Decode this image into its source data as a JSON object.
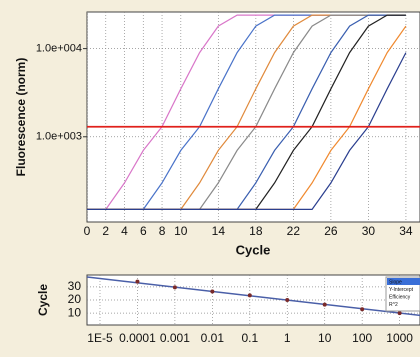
{
  "chart_data": [
    {
      "type": "line",
      "ylabel": "Fluorescence (norm)",
      "xlabel": "Cycle",
      "log_y": true,
      "x": [
        0,
        2,
        4,
        6,
        8,
        10,
        12,
        14,
        16,
        18,
        20,
        22,
        24,
        26,
        28,
        30,
        32,
        34
      ],
      "xlim": [
        0,
        35.5
      ],
      "xticks": [
        0,
        2,
        4,
        6,
        8,
        10,
        14,
        18,
        22,
        26,
        30,
        34
      ],
      "ylim": [
        108,
        26000
      ],
      "yticks": [
        {
          "value": 10000,
          "label": "1.0e+004"
        },
        {
          "value": 1000,
          "label": "1.0e+003"
        }
      ],
      "grid": true,
      "threshold": {
        "value": 1300,
        "color": "#e0201b"
      },
      "series": [
        {
          "color": "#d977c9",
          "values": [
            150,
            150,
            300,
            700,
            1300,
            3500,
            9000,
            18000,
            24000,
            24000,
            24000,
            24000,
            24000,
            24000,
            24000,
            24000,
            24000,
            24000
          ]
        },
        {
          "color": "#4a73c9",
          "values": [
            150,
            150,
            150,
            150,
            300,
            700,
            1300,
            3500,
            9000,
            18000,
            24000,
            24000,
            24000,
            24000,
            24000,
            24000,
            24000,
            24000
          ]
        },
        {
          "color": "#e08a3c",
          "values": [
            150,
            150,
            150,
            150,
            150,
            150,
            300,
            700,
            1300,
            3500,
            9000,
            18000,
            24000,
            24000,
            24000,
            24000,
            24000,
            24000
          ]
        },
        {
          "color": "#8a8a8a",
          "values": [
            150,
            150,
            150,
            150,
            150,
            150,
            150,
            300,
            700,
            1300,
            3500,
            9000,
            18000,
            24000,
            24000,
            24000,
            24000,
            24000
          ]
        },
        {
          "color": "#3a5fb0",
          "values": [
            150,
            150,
            150,
            150,
            150,
            150,
            150,
            150,
            150,
            300,
            700,
            1300,
            3500,
            9000,
            18000,
            24000,
            24000,
            24000
          ]
        },
        {
          "color": "#222222",
          "values": [
            150,
            150,
            150,
            150,
            150,
            150,
            150,
            150,
            150,
            150,
            300,
            700,
            1300,
            3500,
            9000,
            18000,
            24000,
            24000
          ]
        },
        {
          "color": "#f08a30",
          "values": [
            150,
            150,
            150,
            150,
            150,
            150,
            150,
            150,
            150,
            150,
            150,
            150,
            300,
            700,
            1300,
            3500,
            9000,
            18000
          ]
        },
        {
          "color": "#2b3f8f",
          "values": [
            150,
            150,
            150,
            150,
            150,
            150,
            150,
            150,
            150,
            150,
            150,
            150,
            150,
            300,
            700,
            1300,
            3500,
            9000
          ]
        }
      ]
    },
    {
      "type": "scatter",
      "ylabel": "Cycle",
      "log_x": true,
      "x": [
        0.0001,
        0.001,
        0.01,
        0.1,
        1,
        10,
        100,
        1000
      ],
      "values": [
        34,
        29.6,
        26.5,
        23.5,
        20,
        16.5,
        13,
        10
      ],
      "color": "#7a2a2a",
      "line_color": "#4a5fa8",
      "fit": {
        "x": [
          4.5e-06,
          3500
        ],
        "values": [
          37.5,
          8.3
        ]
      },
      "xlim": [
        4.5e-06,
        3500
      ],
      "xticks": [
        {
          "value": 1e-05,
          "label": "1E-5"
        },
        0.0001,
        0.001,
        0.01,
        0.1,
        1,
        10,
        100,
        1000
      ],
      "ylim": [
        1,
        39
      ],
      "yticks": [
        10,
        20,
        30
      ],
      "grid": true,
      "stats_labels": [
        "Slope",
        "Y-Intercept",
        "Efficiency",
        "R^2"
      ]
    }
  ]
}
